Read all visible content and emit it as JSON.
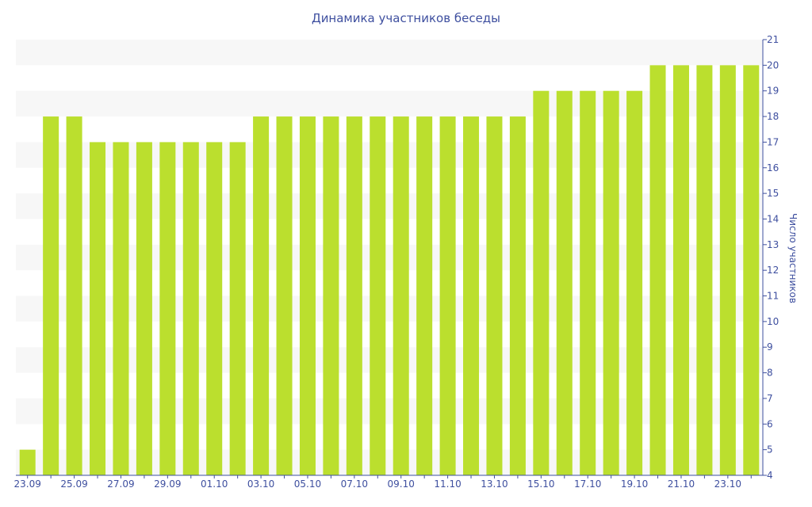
{
  "chart_data": {
    "type": "bar",
    "title": "Динамика участников беседы",
    "ylabel": "Число участников",
    "xlabel": "",
    "categories": [
      "23.09",
      "24.09",
      "25.09",
      "26.09",
      "27.09",
      "28.09",
      "29.09",
      "30.09",
      "01.10",
      "02.10",
      "03.10",
      "04.10",
      "05.10",
      "06.10",
      "07.10",
      "08.10",
      "09.10",
      "10.10",
      "11.10",
      "12.10",
      "13.10",
      "14.10",
      "15.10",
      "16.10",
      "17.10",
      "18.10",
      "19.10",
      "20.10",
      "21.10",
      "22.10",
      "23.10",
      "24.10"
    ],
    "x_tick_labels": [
      "23.09",
      "25.09",
      "27.09",
      "29.09",
      "01.10",
      "03.10",
      "05.10",
      "07.10",
      "09.10",
      "11.10",
      "13.10",
      "15.10",
      "17.10",
      "19.10",
      "21.10",
      "23.10"
    ],
    "values": [
      5,
      18,
      18,
      17,
      17,
      17,
      17,
      17,
      17,
      17,
      18,
      18,
      18,
      18,
      18,
      18,
      18,
      18,
      18,
      18,
      18,
      18,
      19,
      19,
      19,
      19,
      19,
      20,
      20,
      20,
      20,
      20
    ],
    "ylim": [
      4,
      21
    ],
    "y_ticks": [
      4,
      5,
      6,
      7,
      8,
      9,
      10,
      11,
      12,
      13,
      14,
      15,
      16,
      17,
      18,
      19,
      20,
      21
    ],
    "y_axis_side": "right",
    "grid": "alternating horizontal bands",
    "legend": "none",
    "colors": {
      "bar": "#bbdf2e",
      "text": "#3e4f9f",
      "axis": "#3e4f9f",
      "band": "#f7f7f7"
    }
  }
}
